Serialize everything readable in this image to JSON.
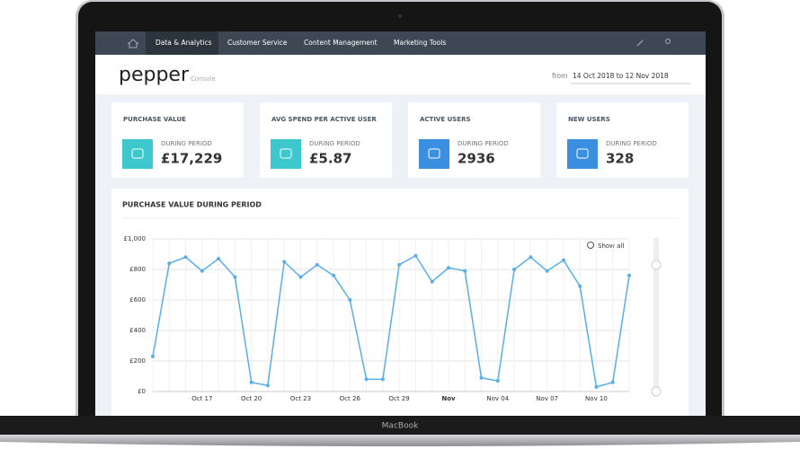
{
  "nav": {
    "items": [
      "Data & Analytics",
      "Customer Service",
      "Content Management",
      "Marketing Tools"
    ]
  },
  "header": {
    "logo": "pepper",
    "logo_sub": "Console",
    "date_prefix": "from",
    "date_range": "14 Oct 2018 to 12 Nov 2018"
  },
  "cards": [
    {
      "title": "PURCHASE VALUE",
      "label": "DURING PERIOD",
      "value": "£17,229"
    },
    {
      "title": "AVG SPEND PER ACTIVE USER",
      "label": "DURING PERIOD",
      "value": "£5.87"
    },
    {
      "title": "ACTIVE USERS",
      "label": "DURING PERIOD",
      "value": "2936"
    },
    {
      "title": "NEW USERS",
      "label": "DURING PERIOD",
      "value": "328"
    }
  ],
  "laptop_brand": "MacBook",
  "chart_data": {
    "type": "line",
    "title": "PURCHASE VALUE DURING PERIOD",
    "reset_button": "Show all",
    "categories": [
      null,
      null,
      null,
      "Oct 17",
      null,
      null,
      "Oct 20",
      null,
      null,
      "Oct 23",
      null,
      null,
      "Oct 26",
      null,
      null,
      "Oct 29",
      null,
      null,
      "Nov",
      null,
      null,
      "Nov 04",
      null,
      null,
      "Nov 07",
      null,
      null,
      "Nov 10",
      null,
      null
    ],
    "values": [
      230,
      840,
      880,
      790,
      870,
      750,
      60,
      40,
      850,
      750,
      830,
      760,
      600,
      80,
      80,
      830,
      890,
      720,
      810,
      790,
      90,
      70,
      800,
      880,
      790,
      860,
      690,
      30,
      60,
      760
    ],
    "color": "#5aaee8",
    "ylim": [
      0,
      1000
    ],
    "yticks": [
      {
        "value": 0,
        "label": "£0"
      },
      {
        "value": 200,
        "label": "£200"
      },
      {
        "value": 400,
        "label": "£400"
      },
      {
        "value": 600,
        "label": "£600"
      },
      {
        "value": 800,
        "label": "£800"
      },
      {
        "value": 1000,
        "label": "£1,000"
      }
    ],
    "grid": true
  }
}
